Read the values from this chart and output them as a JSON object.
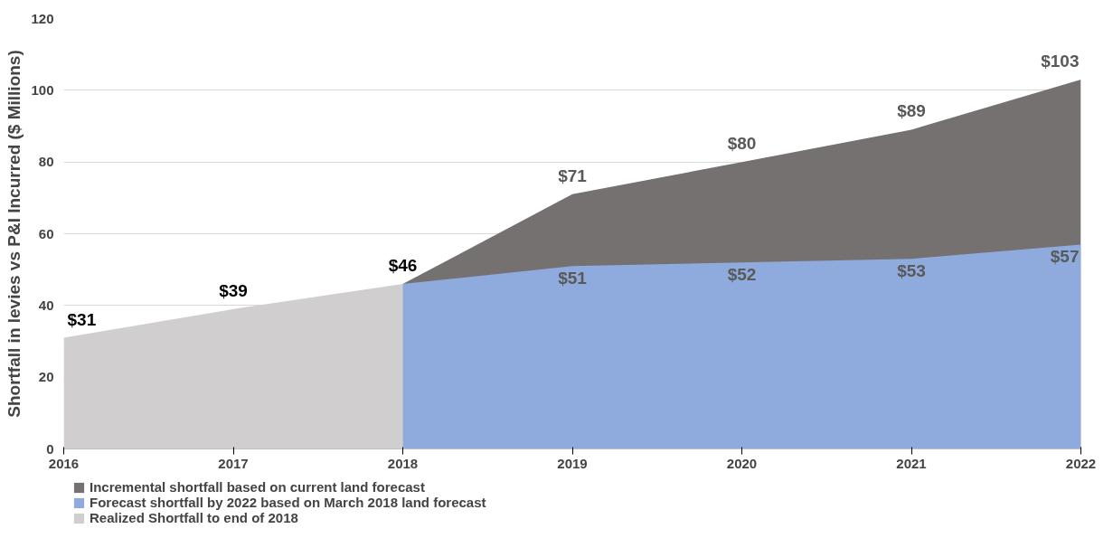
{
  "chart_data": {
    "type": "area",
    "ylabel": "Shortfall in levies vs P&I Incurred ($ Millions)",
    "xlim": [
      2016,
      2022
    ],
    "xticks": [
      2016,
      2017,
      2018,
      2019,
      2020,
      2021,
      2022
    ],
    "ylim": [
      0,
      120
    ],
    "yticks": [
      0,
      20,
      40,
      60,
      80,
      100,
      120
    ],
    "grid": "y",
    "legend": "bottom",
    "series": [
      {
        "name": "Incremental shortfall based on current land forecast",
        "color": "#767171",
        "x": [
          2018,
          2019,
          2020,
          2021,
          2022
        ],
        "values": [
          46,
          71,
          80,
          89,
          103
        ],
        "value_labels": [
          null,
          "$71",
          "$80",
          "$89",
          "$103"
        ]
      },
      {
        "name": "Forecast shortfall by 2022 based on March 2018 land forecast",
        "color": "#8faadc",
        "x": [
          2018,
          2019,
          2020,
          2021,
          2022
        ],
        "values": [
          46,
          51,
          52,
          53,
          57
        ],
        "value_labels": [
          null,
          "$51",
          "$52",
          "$53",
          "$57"
        ]
      },
      {
        "name": "Realized Shortfall to end of 2018",
        "color": "#d0cece",
        "x": [
          2016,
          2017,
          2018
        ],
        "values": [
          31,
          39,
          46
        ],
        "value_labels": [
          "$31",
          "$39",
          "$46"
        ]
      }
    ]
  }
}
